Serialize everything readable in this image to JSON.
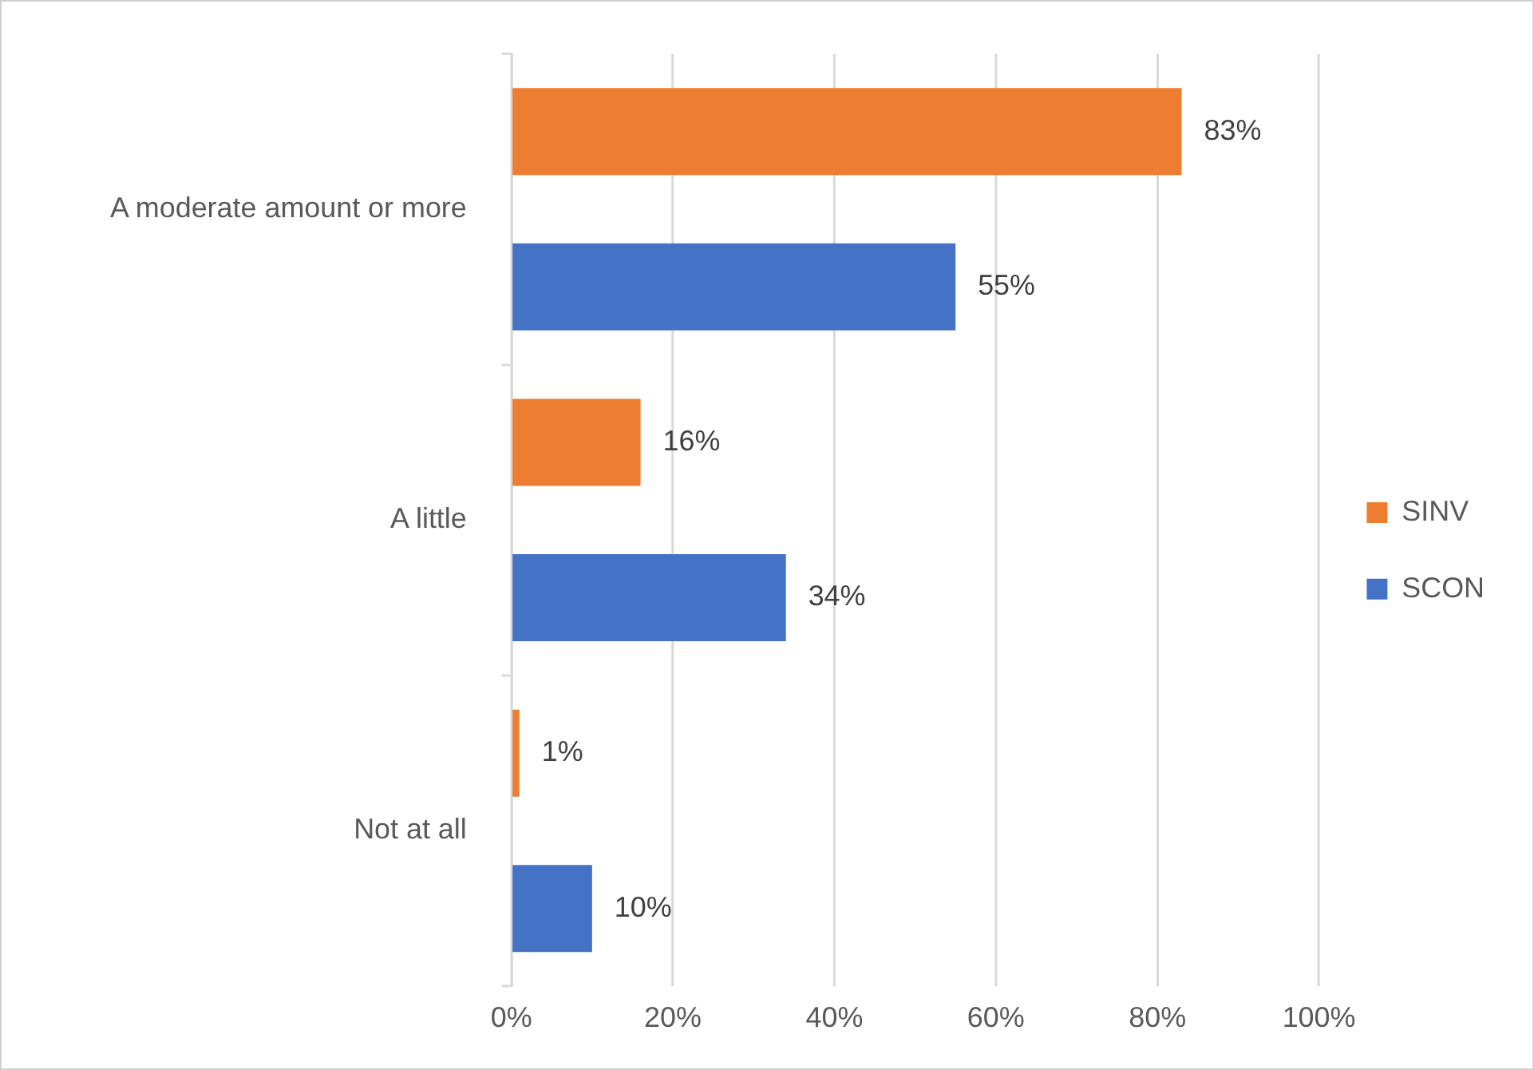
{
  "chart_data": {
    "type": "bar",
    "orientation": "horizontal",
    "categories": [
      "A moderate amount or more",
      "A little",
      "Not at all"
    ],
    "series": [
      {
        "name": "SINV",
        "color": "#ed7d31",
        "values": [
          83,
          16,
          1
        ],
        "value_labels": [
          "83%",
          "16%",
          "1%"
        ]
      },
      {
        "name": "SCON",
        "color": "#4472c4",
        "values": [
          55,
          34,
          10
        ],
        "value_labels": [
          "55%",
          "34%",
          "10%"
        ]
      }
    ],
    "xlim": [
      0,
      100
    ],
    "xticks": [
      {
        "value": 0,
        "label": "0%"
      },
      {
        "value": 20,
        "label": "20%"
      },
      {
        "value": 40,
        "label": "40%"
      },
      {
        "value": 60,
        "label": "60%"
      },
      {
        "value": 80,
        "label": "80%"
      },
      {
        "value": 100,
        "label": "100%"
      }
    ],
    "grid": "x",
    "legend": "right"
  }
}
